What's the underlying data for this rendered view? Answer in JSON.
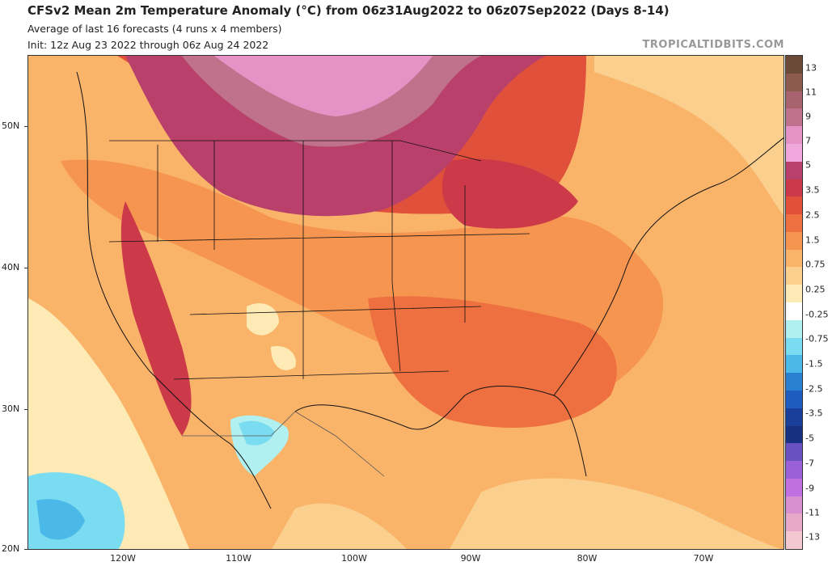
{
  "header": {
    "title": "CFSv2 Mean 2m Temperature Anomaly (°C) from 06z31Aug2022 to 06z07Sep2022 (Days 8-14)",
    "subtitle": "Average of last 16 forecasts (4 runs x 4 members)",
    "init": "Init: 12z Aug 23 2022 through 06z Aug 24 2022",
    "credit": "TROPICALTIDBITS.COM"
  },
  "axes": {
    "lat_labels": [
      "50N",
      "40N",
      "30N",
      "20N"
    ],
    "lon_labels": [
      "120W",
      "110W",
      "100W",
      "90W",
      "80W",
      "70W"
    ]
  },
  "colorbar": {
    "labels": [
      "13",
      "11",
      "9",
      "7",
      "5",
      "3.5",
      "2.5",
      "1.5",
      "0.75",
      "0.25",
      "-0.25",
      "-0.75",
      "-1.5",
      "-2.5",
      "-3.5",
      "-5",
      "-7",
      "-9",
      "-11",
      "-13"
    ],
    "colors": [
      "#6b4a3a",
      "#8c5a4e",
      "#a8646e",
      "#c0728c",
      "#e592c6",
      "#f0a8dc",
      "#b8406a",
      "#cc3a4a",
      "#e0503a",
      "#ee7040",
      "#f5954f",
      "#f9b46a",
      "#fbd08e",
      "#fdeab4",
      "#ffffff",
      "#b0f0f0",
      "#7adcf0",
      "#4ab8e8",
      "#2a80d0",
      "#1f5cc0",
      "#1a3f9a",
      "#183080",
      "#6a50c0",
      "#9a60d8",
      "#c070e0",
      "#d890d0",
      "#e8a8c8",
      "#f4c8d0"
    ]
  },
  "map": {
    "background": "#f9b46a",
    "region": "Continental United States, Mexico, southern Canada"
  }
}
